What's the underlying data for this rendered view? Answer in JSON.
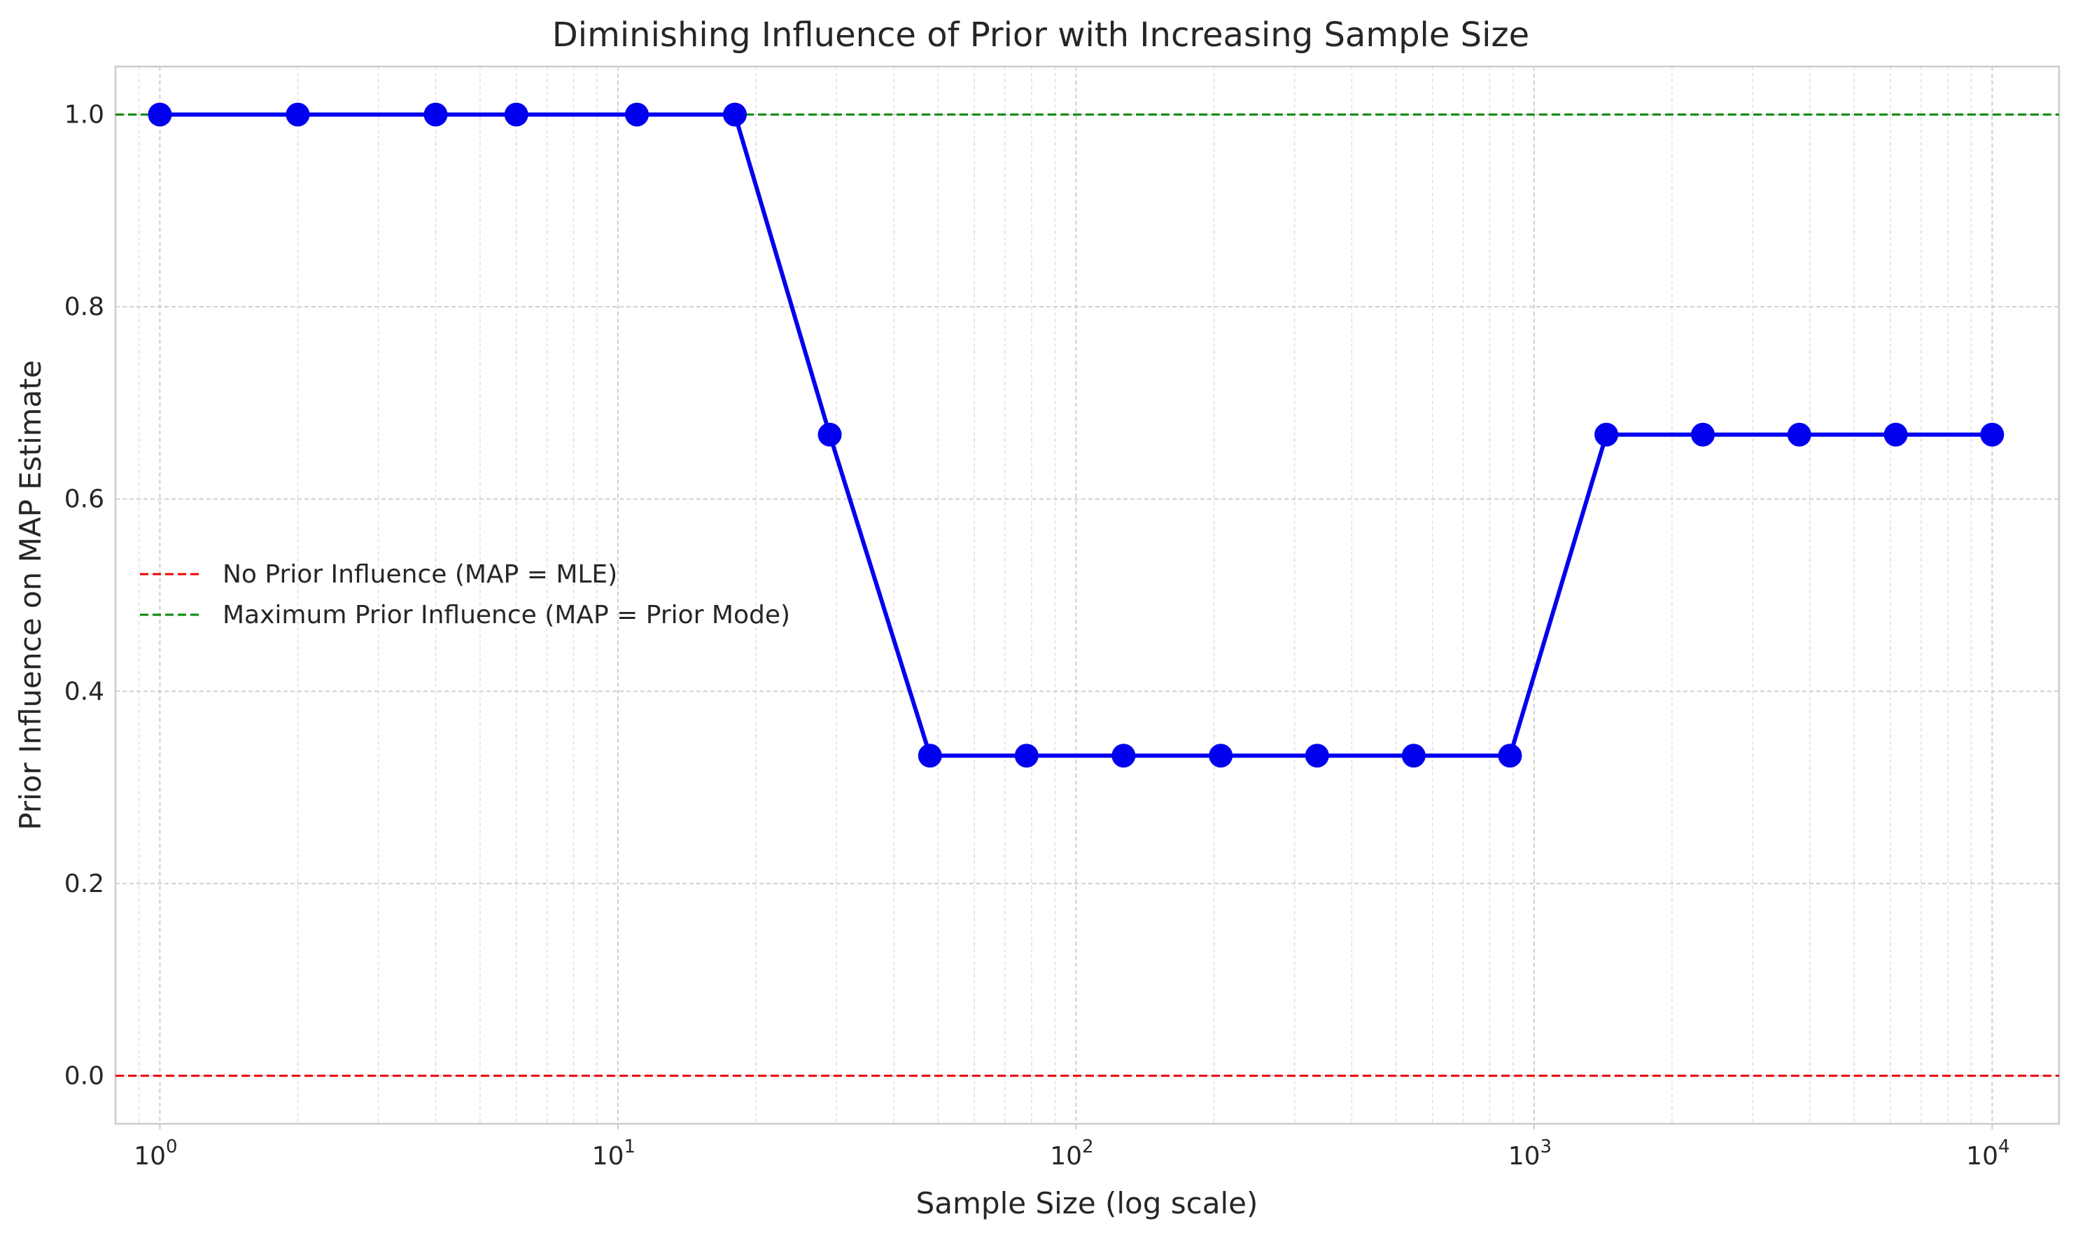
{
  "chart_data": {
    "type": "line",
    "title": "Diminishing Influence of Prior with Increasing Sample Size",
    "xlabel": "Sample Size (log scale)",
    "ylabel": "Prior Influence on MAP Estimate",
    "xscale": "log",
    "xlim": [
      0.8,
      14000
    ],
    "ylim": [
      -0.05,
      1.05
    ],
    "xticks": [
      {
        "value": 1,
        "base": "10",
        "exp": "0"
      },
      {
        "value": 10,
        "base": "10",
        "exp": "1"
      },
      {
        "value": 100,
        "base": "10",
        "exp": "2"
      },
      {
        "value": 1000,
        "base": "10",
        "exp": "3"
      },
      {
        "value": 10000,
        "base": "10",
        "exp": "4"
      }
    ],
    "yticks": [
      {
        "value": 0.0,
        "label": "0.0"
      },
      {
        "value": 0.2,
        "label": "0.2"
      },
      {
        "value": 0.4,
        "label": "0.4"
      },
      {
        "value": 0.6,
        "label": "0.6"
      },
      {
        "value": 0.8,
        "label": "0.8"
      },
      {
        "value": 1.0,
        "label": "1.0"
      }
    ],
    "grid": true,
    "legend_position": "center-left",
    "series": [
      {
        "color": "#0000ee",
        "x": [
          1,
          2,
          4,
          6,
          11,
          18,
          29,
          48,
          78,
          127,
          207,
          336,
          546,
          886,
          1438,
          2336,
          3793,
          6159,
          10000
        ],
        "y": [
          1.0,
          1.0,
          1.0,
          1.0,
          1.0,
          1.0,
          0.667,
          0.333,
          0.333,
          0.333,
          0.333,
          0.333,
          0.333,
          0.333,
          0.667,
          0.667,
          0.667,
          0.667,
          0.667
        ]
      }
    ],
    "reference_lines": [
      {
        "name": "No Prior Influence (MAP = MLE)",
        "y": 0.0,
        "color": "#ee0000",
        "style": "dashed"
      },
      {
        "name": "Maximum Prior Influence (MAP = Prior Mode)",
        "y": 1.0,
        "color": "#008800",
        "style": "dashed"
      }
    ]
  }
}
